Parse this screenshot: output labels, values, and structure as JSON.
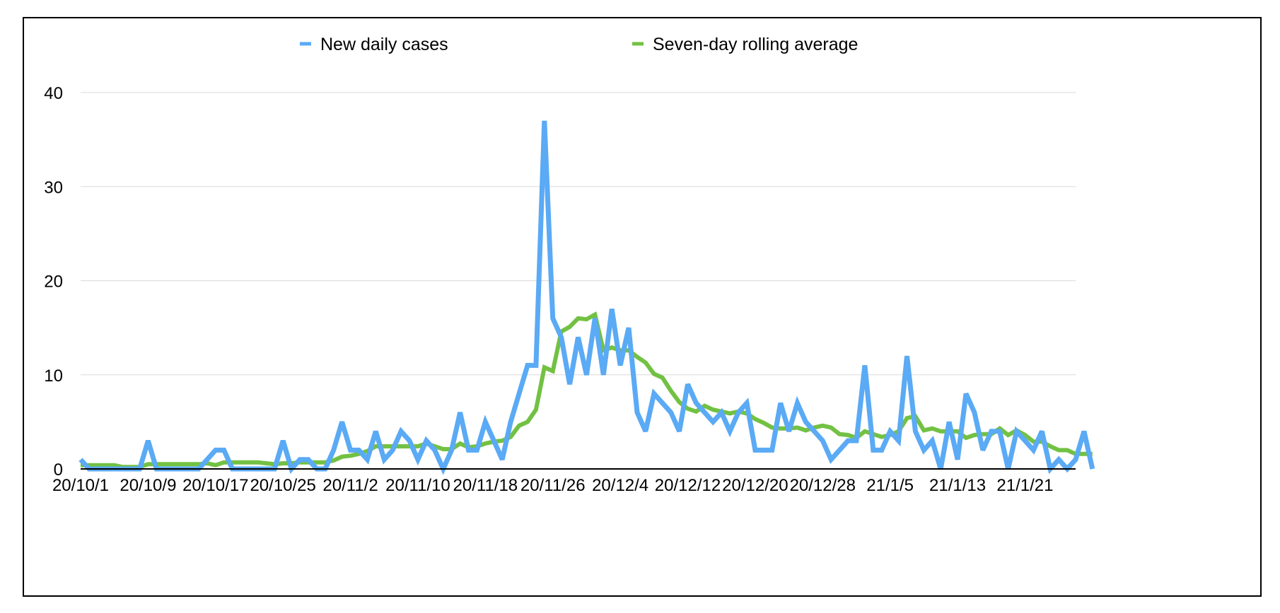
{
  "chart_data": {
    "type": "line",
    "title": "",
    "xlabel": "",
    "ylabel": "",
    "ylim": [
      0,
      40
    ],
    "yticks": [
      0,
      10,
      20,
      30,
      40
    ],
    "grid": true,
    "legend_position": "top",
    "start_date": "2020-10-01",
    "end_date": "2021-01-27",
    "xtick_labels": [
      "20/10/1",
      "20/10/9",
      "20/10/17",
      "20/10/25",
      "20/11/2",
      "20/11/10",
      "20/11/18",
      "20/11/26",
      "20/12/4",
      "20/12/12",
      "20/12/20",
      "20/12/28",
      "21/1/5",
      "21/1/13",
      "21/1/21"
    ],
    "series": [
      {
        "name": "New daily cases",
        "color": "#5aaaf5",
        "values": [
          1,
          0,
          0,
          0,
          0,
          0,
          0,
          0,
          3,
          0,
          0,
          0,
          0,
          0,
          0,
          1,
          2,
          2,
          0,
          0,
          0,
          0,
          0,
          0,
          3,
          0,
          1,
          1,
          0,
          0,
          2,
          5,
          2,
          2,
          1,
          4,
          1,
          2,
          4,
          3,
          1,
          3,
          2,
          0,
          2,
          6,
          2,
          2,
          5,
          3,
          1,
          5,
          8,
          11,
          11,
          37,
          16,
          14,
          9,
          14,
          10,
          16,
          10,
          17,
          11,
          15,
          6,
          4,
          8,
          7,
          6,
          4,
          9,
          7,
          6,
          5,
          6,
          4,
          6,
          7,
          2,
          2,
          2,
          7,
          4,
          7,
          5,
          4,
          3,
          1,
          2,
          3,
          3,
          11,
          2,
          2,
          4,
          3,
          12,
          4,
          2,
          3,
          0,
          5,
          1,
          8,
          6,
          2,
          4,
          4,
          0,
          4,
          3,
          2,
          4,
          0,
          1,
          0,
          1,
          4,
          0
        ]
      },
      {
        "name": "Seven-day rolling average",
        "color": "#72c143",
        "values": [
          0.4,
          0.4,
          0.4,
          0.4,
          0.4,
          0.2,
          0.2,
          0.2,
          0.5,
          0.5,
          0.5,
          0.5,
          0.5,
          0.5,
          0.5,
          0.6,
          0.4,
          0.7,
          0.7,
          0.7,
          0.7,
          0.7,
          0.6,
          0.5,
          0.6,
          0.6,
          0.7,
          0.7,
          0.7,
          0.7,
          0.9,
          1.3,
          1.4,
          1.6,
          1.9,
          2.4,
          2.4,
          2.4,
          2.4,
          2.4,
          2.4,
          2.7,
          2.4,
          2.1,
          2.1,
          2.7,
          2.3,
          2.4,
          2.7,
          2.9,
          3.0,
          3.4,
          4.6,
          5.0,
          6.3,
          10.8,
          10.4,
          14.6,
          15.1,
          16.0,
          15.9,
          16.4,
          12.6,
          12.9,
          12.6,
          12.6,
          11.9,
          11.3,
          10.1,
          9.7,
          8.3,
          7.1,
          6.4,
          6.1,
          6.7,
          6.3,
          6.1,
          5.9,
          6.1,
          5.9,
          5.3,
          4.9,
          4.4,
          4.3,
          4.3,
          4.4,
          4.1,
          4.4,
          4.6,
          4.4,
          3.7,
          3.6,
          3.3,
          4.0,
          3.7,
          3.4,
          3.6,
          4.0,
          5.4,
          5.6,
          4.1,
          4.3,
          4.0,
          4.0,
          4.0,
          3.3,
          3.6,
          3.7,
          3.7,
          4.3,
          3.6,
          4.1,
          3.6,
          2.9,
          2.9,
          2.4,
          2.0,
          2.0,
          1.6,
          1.6,
          1.6
        ]
      }
    ]
  }
}
